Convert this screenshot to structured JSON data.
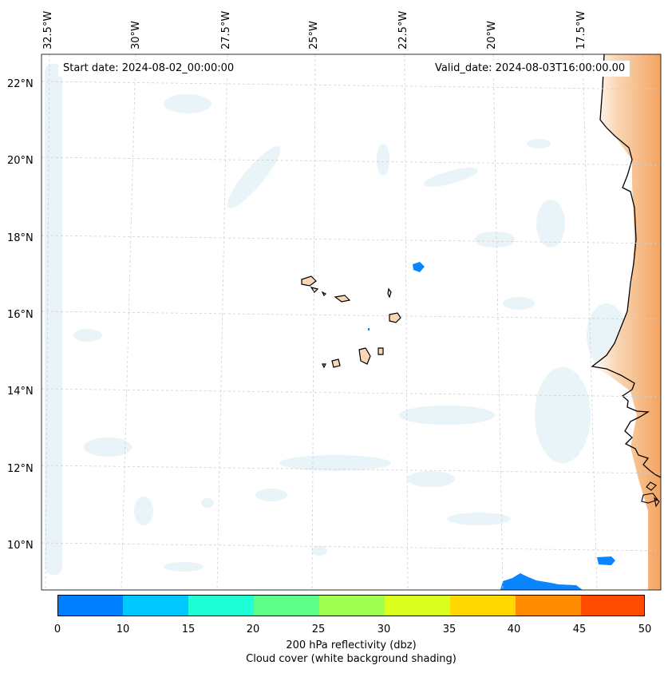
{
  "map": {
    "start_date": "Start date: 2024-08-02_00:00:00",
    "valid_date": "Valid_date: 2024-08-03T16:00:00.00",
    "lon_labels": [
      "32.5°W",
      "30°W",
      "27.5°W",
      "25°W",
      "22.5°W",
      "20°W",
      "17.5°W"
    ],
    "lat_labels": [
      "22°N",
      "20°N",
      "18°N",
      "16°N",
      "14°N",
      "12°N",
      "10°N"
    ],
    "extent": {
      "lon_min": -32.6,
      "lon_max": -16.2,
      "lat_min": 8.9,
      "lat_max": 22.7
    }
  },
  "colorbar": {
    "ticks": [
      "0",
      "10",
      "15",
      "20",
      "25",
      "30",
      "35",
      "40",
      "45",
      "50"
    ],
    "colors": [
      "#0080ff",
      "#00c8ff",
      "#1effd6",
      "#5eff8a",
      "#a0ff50",
      "#daff1e",
      "#ffd800",
      "#ff8c00",
      "#ff4b00"
    ],
    "title_line1": "200 hPa reflectivity (dbz)",
    "title_line2": "Cloud cover (white background shading)"
  },
  "colors": {
    "land": "#f4a460",
    "cloud": "#d6ebf0",
    "radar_echo": "#0a84ff",
    "coastline": "#000000",
    "grid": "#cfcfcf"
  }
}
